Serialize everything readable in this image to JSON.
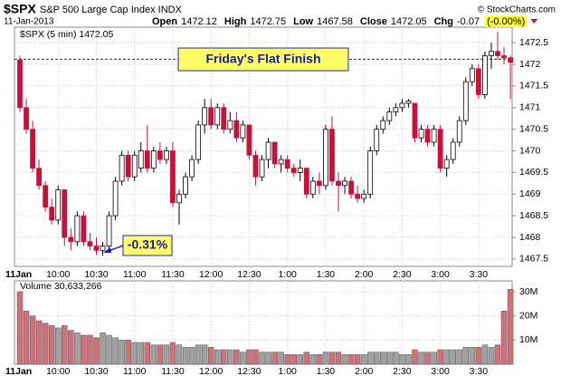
{
  "chart_data": {
    "type": "candlestick",
    "title": "$SPX",
    "subtitle": "S&P 500 Large Cap Index INDX",
    "date": "11-Jan-2013",
    "credit": "© StockCharts.com",
    "stats": [
      [
        "Open",
        1472.12
      ],
      [
        "High",
        1472.75
      ],
      [
        "Low",
        1467.58
      ],
      [
        "Close",
        1472.05
      ],
      [
        "Chg",
        -0.07
      ]
    ],
    "change_pct": "(-0.00%)",
    "legend": "$SPX (5 min) 1472.05",
    "volume_legend": "Volume 30,633,266",
    "annotations": [
      "Friday's Flat Finish",
      "-0.31%"
    ],
    "reference_line": 1472.12,
    "up_color": "#ffffff",
    "down_color": "#c8103c",
    "volume_up_color": "#a0a0a0",
    "volume_down_color": "#d0707c",
    "grid": true,
    "categories": [
      "11Jan",
      null,
      null,
      null,
      null,
      null,
      "10:00",
      null,
      null,
      null,
      null,
      null,
      "10:30",
      null,
      null,
      null,
      null,
      null,
      "11:00",
      null,
      null,
      null,
      null,
      null,
      "11:30",
      null,
      null,
      null,
      null,
      null,
      "12:00",
      null,
      null,
      null,
      null,
      null,
      "12:30",
      null,
      null,
      null,
      null,
      null,
      "1:00",
      null,
      null,
      null,
      null,
      null,
      "1:30",
      null,
      null,
      null,
      null,
      null,
      "2:00",
      null,
      null,
      null,
      null,
      null,
      "2:30",
      null,
      null,
      null,
      null,
      null,
      "3:00",
      null,
      null,
      null,
      null,
      null,
      "3:30",
      null,
      null,
      null,
      null,
      null
    ],
    "candles": [
      [
        1472.1,
        1472.2,
        1470.9,
        1471.0
      ],
      [
        1471.0,
        1471.2,
        1470.4,
        1470.5
      ],
      [
        1470.5,
        1470.7,
        1469.5,
        1469.6
      ],
      [
        1469.6,
        1469.8,
        1469.1,
        1469.2
      ],
      [
        1469.2,
        1469.3,
        1468.6,
        1468.7
      ],
      [
        1468.7,
        1468.9,
        1468.3,
        1468.4
      ],
      [
        1468.4,
        1469.2,
        1468.3,
        1469.1
      ],
      [
        1469.1,
        1469.1,
        1467.8,
        1468.0
      ],
      [
        1468.0,
        1468.2,
        1467.7,
        1467.9
      ],
      [
        1467.9,
        1468.6,
        1467.8,
        1468.5
      ],
      [
        1468.5,
        1468.6,
        1467.8,
        1467.9
      ],
      [
        1467.9,
        1468.1,
        1467.7,
        1467.8
      ],
      [
        1467.8,
        1468.0,
        1467.6,
        1467.7
      ],
      [
        1467.7,
        1467.9,
        1467.58,
        1467.8
      ],
      [
        1467.8,
        1468.6,
        1467.7,
        1468.5
      ],
      [
        1468.5,
        1469.4,
        1468.4,
        1469.3
      ],
      [
        1469.3,
        1470.0,
        1469.2,
        1469.9
      ],
      [
        1469.9,
        1470.0,
        1469.3,
        1469.4
      ],
      [
        1469.4,
        1470.0,
        1469.3,
        1469.9
      ],
      [
        1469.6,
        1470.2,
        1469.5,
        1470.0
      ],
      [
        1470.0,
        1470.6,
        1469.5,
        1469.6
      ],
      [
        1469.6,
        1470.1,
        1469.5,
        1470.0
      ],
      [
        1470.0,
        1470.2,
        1469.7,
        1469.8
      ],
      [
        1469.8,
        1470.1,
        1469.7,
        1470.0
      ],
      [
        1470.0,
        1470.2,
        1468.7,
        1468.8
      ],
      [
        1468.8,
        1469.1,
        1468.3,
        1469.0
      ],
      [
        1469.0,
        1469.5,
        1468.9,
        1469.4
      ],
      [
        1469.4,
        1469.9,
        1469.3,
        1469.8
      ],
      [
        1469.8,
        1470.7,
        1469.7,
        1470.6
      ],
      [
        1470.6,
        1471.2,
        1470.4,
        1471.0
      ],
      [
        1471.0,
        1471.2,
        1470.5,
        1470.6
      ],
      [
        1470.6,
        1471.1,
        1470.5,
        1471.0
      ],
      [
        1471.0,
        1471.1,
        1470.4,
        1470.5
      ],
      [
        1470.5,
        1470.9,
        1470.4,
        1470.7
      ],
      [
        1470.7,
        1470.9,
        1470.2,
        1470.3
      ],
      [
        1470.3,
        1470.7,
        1470.2,
        1470.6
      ],
      [
        1470.6,
        1470.6,
        1469.8,
        1469.9
      ],
      [
        1469.9,
        1470.0,
        1469.2,
        1469.4
      ],
      [
        1469.4,
        1469.9,
        1469.3,
        1469.8
      ],
      [
        1469.8,
        1470.3,
        1469.6,
        1470.2
      ],
      [
        1470.2,
        1470.2,
        1469.6,
        1469.7
      ],
      [
        1469.7,
        1469.9,
        1469.5,
        1469.8
      ],
      [
        1469.8,
        1469.9,
        1469.5,
        1469.6
      ],
      [
        1469.6,
        1469.7,
        1469.4,
        1469.5
      ],
      [
        1469.5,
        1469.8,
        1469.3,
        1469.6
      ],
      [
        1469.6,
        1469.6,
        1468.9,
        1469.0
      ],
      [
        1469.0,
        1469.4,
        1468.9,
        1469.3
      ],
      [
        1469.3,
        1469.5,
        1469.0,
        1469.2
      ],
      [
        1469.2,
        1470.6,
        1469.1,
        1470.5
      ],
      [
        1470.5,
        1470.8,
        1469.2,
        1469.3
      ],
      [
        1469.3,
        1469.5,
        1468.6,
        1469.2
      ],
      [
        1469.2,
        1469.4,
        1469.0,
        1469.3
      ],
      [
        1469.3,
        1469.4,
        1468.9,
        1469.0
      ],
      [
        1469.0,
        1469.2,
        1468.8,
        1468.9
      ],
      [
        1468.9,
        1469.1,
        1468.8,
        1469.0
      ],
      [
        1469.0,
        1470.1,
        1468.9,
        1470.0
      ],
      [
        1470.0,
        1470.6,
        1469.9,
        1470.5
      ],
      [
        1470.5,
        1470.8,
        1470.4,
        1470.7
      ],
      [
        1470.7,
        1471.0,
        1470.6,
        1470.9
      ],
      [
        1470.9,
        1471.1,
        1470.8,
        1471.0
      ],
      [
        1471.0,
        1471.2,
        1470.9,
        1471.1
      ],
      [
        1471.1,
        1471.2,
        1471.0,
        1471.15
      ],
      [
        1471.1,
        1471.1,
        1470.2,
        1470.3
      ],
      [
        1470.3,
        1470.6,
        1470.2,
        1470.5
      ],
      [
        1470.5,
        1470.6,
        1470.1,
        1470.2
      ],
      [
        1470.2,
        1470.6,
        1470.1,
        1470.5
      ],
      [
        1470.5,
        1470.6,
        1469.5,
        1469.6
      ],
      [
        1469.6,
        1469.9,
        1469.4,
        1469.8
      ],
      [
        1469.8,
        1470.3,
        1469.7,
        1470.2
      ],
      [
        1470.2,
        1470.8,
        1470.1,
        1470.7
      ],
      [
        1470.7,
        1471.7,
        1470.6,
        1471.6
      ],
      [
        1471.6,
        1472.0,
        1471.5,
        1471.9
      ],
      [
        1471.9,
        1472.0,
        1471.2,
        1471.3
      ],
      [
        1471.3,
        1472.3,
        1471.2,
        1472.2
      ],
      [
        1472.2,
        1472.5,
        1471.9,
        1472.3
      ],
      [
        1472.3,
        1472.75,
        1472.1,
        1472.2
      ],
      [
        1472.2,
        1472.4,
        1472.0,
        1472.15
      ],
      [
        1472.15,
        1472.2,
        1471.2,
        1472.05
      ]
    ],
    "volumes": [
      30,
      22,
      20,
      18,
      17,
      16,
      15,
      16,
      14,
      13,
      12,
      12,
      11,
      13,
      12,
      11,
      10,
      10,
      9,
      9,
      9,
      8,
      8,
      8,
      9,
      8,
      7,
      7,
      8,
      8,
      7,
      6,
      6,
      6,
      6,
      5,
      6,
      6,
      5,
      5,
      5,
      5,
      4,
      4,
      4,
      5,
      4,
      4,
      5,
      5,
      5,
      4,
      4,
      4,
      4,
      5,
      5,
      5,
      5,
      5,
      4,
      4,
      6,
      5,
      5,
      5,
      6,
      6,
      6,
      6,
      7,
      7,
      7,
      8,
      7,
      8,
      22,
      31
    ],
    "ylim": [
      1467.33,
      1472.86
    ],
    "yticks": [
      1467.5,
      1468.0,
      1468.5,
      1469.0,
      1469.5,
      1470.0,
      1470.5,
      1471.0,
      1471.5,
      1472.0,
      1472.5
    ],
    "y2lim": [
      0,
      34.5
    ],
    "y2ticks": [
      {
        "value": 10,
        "label": "10M"
      },
      {
        "value": 20,
        "label": "20M"
      },
      {
        "value": 30,
        "label": "30M"
      }
    ]
  }
}
